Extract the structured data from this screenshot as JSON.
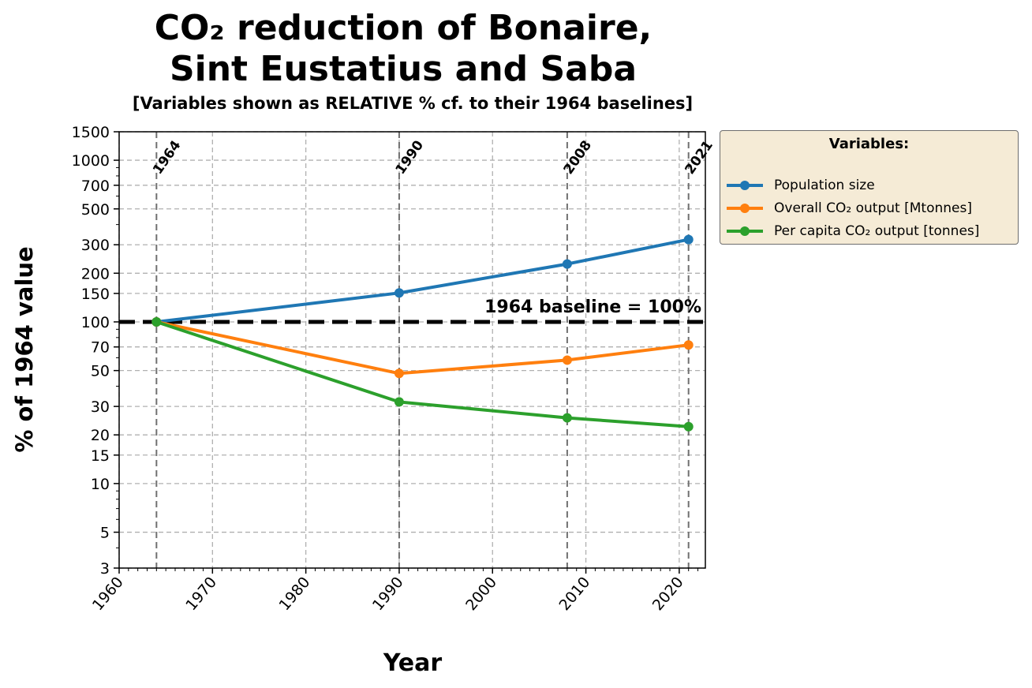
{
  "chart_data": {
    "type": "line",
    "title_line1": "CO₂ reduction of Bonaire,",
    "title_line2": "Sint Eustatius and Saba",
    "subtitle": "[Variables shown as RELATIVE % cf. to their 1964 baselines]",
    "xlabel": "Year",
    "ylabel": "% of 1964 value",
    "y_scale": "log",
    "xlim": [
      1960,
      2022.8
    ],
    "ylim": [
      3,
      1500
    ],
    "x_ticks": [
      1960,
      1970,
      1980,
      1990,
      2000,
      2010,
      2020
    ],
    "y_ticks": [
      3,
      5,
      10,
      15,
      20,
      30,
      50,
      70,
      100,
      150,
      200,
      300,
      500,
      700,
      1000,
      1500
    ],
    "grid": true,
    "x": [
      1964,
      1990,
      2008,
      2021
    ],
    "series": [
      {
        "name": "Population size",
        "color": "#1f77b4",
        "values": [
          100,
          151,
          228,
          323
        ]
      },
      {
        "name": "Overall CO₂ output  [Mtonnes]",
        "color": "#ff7f0e",
        "values": [
          100,
          48,
          58,
          72
        ]
      },
      {
        "name": "Per capita CO₂ output  [tonnes]",
        "color": "#2ca02c",
        "values": [
          100,
          32,
          25.5,
          22.5
        ]
      }
    ],
    "milestone_years": [
      1964,
      1990,
      2008,
      2021
    ],
    "baseline": {
      "value": 100,
      "label": "1964 baseline = 100%"
    },
    "legend": {
      "title": "Variables:",
      "placement": "outside right-top",
      "background": "#f5ebd6"
    }
  }
}
